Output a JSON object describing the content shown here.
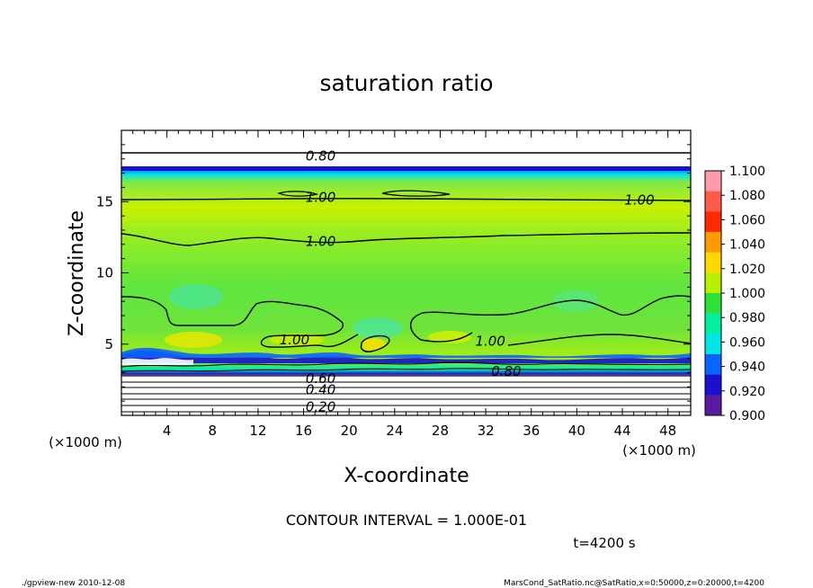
{
  "chart_data": {
    "type": "heatmap",
    "title": "saturation ratio",
    "xlabel": "X-coordinate",
    "ylabel": "Z-coordinate",
    "x_unit_label": "(×1000 m)",
    "y_unit_label": "(×1000 m)",
    "xlim": [
      0,
      50
    ],
    "ylim": [
      0,
      20
    ],
    "x_ticks": [
      "4",
      "8",
      "12",
      "16",
      "20",
      "24",
      "28",
      "32",
      "36",
      "40",
      "44",
      "48"
    ],
    "y_ticks": [
      "5",
      "10",
      "15"
    ],
    "colorbar": {
      "levels": [
        "1.100",
        "1.080",
        "1.060",
        "1.040",
        "1.020",
        "1.000",
        "0.980",
        "0.960",
        "0.940",
        "0.920",
        "0.900"
      ],
      "colors": [
        "#ff9aa8",
        "#ff5a4a",
        "#ff2a00",
        "#ff9a00",
        "#ffd800",
        "#b8f000",
        "#2ee03a",
        "#00f0a0",
        "#00e6e6",
        "#0a64ff",
        "#1a10d0",
        "#5a1aa0"
      ]
    },
    "contour_labels": [
      {
        "text": "0.80",
        "x": 17.5,
        "y": 18.2
      },
      {
        "text": "1.00",
        "x": 17.5,
        "y": 15.3
      },
      {
        "text": "1.00",
        "x": 45.5,
        "y": 15.1
      },
      {
        "text": "1.00",
        "x": 17.5,
        "y": 12.2
      },
      {
        "text": "1.00",
        "x": 15.2,
        "y": 5.3
      },
      {
        "text": "1.00",
        "x": 32.4,
        "y": 5.2
      },
      {
        "text": "0.80",
        "x": 33.8,
        "y": 3.1
      },
      {
        "text": "0.60",
        "x": 17.5,
        "y": 2.6
      },
      {
        "text": "0.40",
        "x": 17.5,
        "y": 1.8
      },
      {
        "text": "0.20",
        "x": 17.5,
        "y": 0.6
      }
    ]
  },
  "annotations": {
    "contour_interval": "CONTOUR INTERVAL = 1.000E-01",
    "time": "t=4200 s",
    "footer_left": "./gpview-new  2010-12-08",
    "footer_right": "MarsCond_SatRatio.nc@SatRatio,x=0:50000,z=0:20000,t=4200"
  }
}
